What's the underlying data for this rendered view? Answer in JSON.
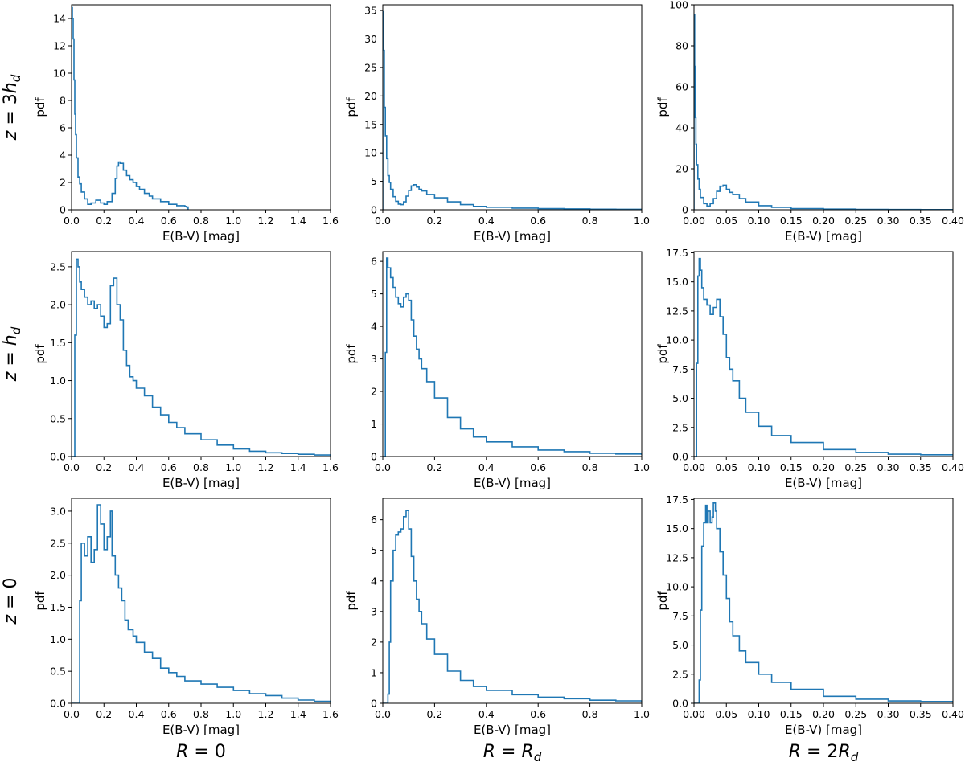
{
  "row_labels": [
    {
      "main": "z",
      "eq": " = 3",
      "var": "h",
      "sub": "d"
    },
    {
      "main": "z",
      "eq": " = ",
      "var": "h",
      "sub": "d"
    },
    {
      "main": "z",
      "eq": " = 0",
      "var": "",
      "sub": ""
    }
  ],
  "col_labels": [
    {
      "main": "R",
      "eq": " = 0",
      "var": "",
      "sub": ""
    },
    {
      "main": "R",
      "eq": " = ",
      "var": "R",
      "sub": "d"
    },
    {
      "main": "R",
      "eq": " = 2",
      "var": "R",
      "sub": "d"
    }
  ],
  "colors": {
    "series": "#1f77b4"
  },
  "chart_data": [
    {
      "type": "step",
      "row": 0,
      "col": 0,
      "xlabel": "E(B-V) [mag]",
      "ylabel": "pdf",
      "xlim": [
        0,
        1.6
      ],
      "ylim": [
        0,
        15
      ],
      "xticks": [
        "0.0",
        "0.2",
        "0.4",
        "0.6",
        "0.8",
        "1.0",
        "1.2",
        "1.4",
        "1.6"
      ],
      "xtick_values": [
        0,
        0.2,
        0.4,
        0.6,
        0.8,
        1.0,
        1.2,
        1.4,
        1.6
      ],
      "yticks": [
        "0",
        "2",
        "4",
        "6",
        "8",
        "10",
        "12",
        "14"
      ],
      "ytick_values": [
        0,
        2,
        4,
        6,
        8,
        10,
        12,
        14
      ],
      "x": [
        0.0,
        0.005,
        0.01,
        0.015,
        0.02,
        0.025,
        0.03,
        0.04,
        0.05,
        0.06,
        0.08,
        0.1,
        0.12,
        0.15,
        0.18,
        0.2,
        0.22,
        0.25,
        0.27,
        0.28,
        0.29,
        0.3,
        0.32,
        0.34,
        0.36,
        0.38,
        0.4,
        0.42,
        0.45,
        0.48,
        0.5,
        0.55,
        0.6,
        0.65,
        0.7,
        0.71,
        0.72
      ],
      "y": [
        14.8,
        14.0,
        12.5,
        9.5,
        7.0,
        5.5,
        3.8,
        2.4,
        1.9,
        1.3,
        0.8,
        0.4,
        0.5,
        0.7,
        0.5,
        0.4,
        0.6,
        1.2,
        2.3,
        3.2,
        3.5,
        3.4,
        2.9,
        2.5,
        2.2,
        2.0,
        1.7,
        1.5,
        1.2,
        1.0,
        0.8,
        0.6,
        0.4,
        0.3,
        0.25,
        0.2,
        0.0
      ]
    },
    {
      "type": "step",
      "row": 0,
      "col": 1,
      "xlabel": "E(B-V) [mag]",
      "ylabel": "pdf",
      "xlim": [
        0,
        1.0
      ],
      "ylim": [
        0,
        36
      ],
      "xticks": [
        "0.0",
        "0.2",
        "0.4",
        "0.6",
        "0.8",
        "1.0"
      ],
      "xtick_values": [
        0,
        0.2,
        0.4,
        0.6,
        0.8,
        1.0
      ],
      "yticks": [
        "0",
        "5",
        "10",
        "15",
        "20",
        "25",
        "30",
        "35"
      ],
      "ytick_values": [
        0,
        5,
        10,
        15,
        20,
        25,
        30,
        35
      ],
      "x": [
        0.0,
        0.003,
        0.006,
        0.01,
        0.015,
        0.02,
        0.025,
        0.03,
        0.04,
        0.05,
        0.06,
        0.07,
        0.08,
        0.09,
        0.1,
        0.11,
        0.12,
        0.13,
        0.14,
        0.15,
        0.17,
        0.2,
        0.25,
        0.3,
        0.35,
        0.4,
        0.5,
        0.6,
        0.7,
        0.8,
        0.9,
        1.0
      ],
      "y": [
        34.8,
        28.0,
        18.0,
        13.0,
        9.0,
        6.0,
        4.8,
        3.6,
        2.3,
        1.5,
        1.0,
        0.9,
        1.4,
        2.4,
        3.4,
        4.2,
        4.4,
        4.0,
        3.6,
        3.3,
        2.7,
        2.1,
        1.4,
        0.9,
        0.6,
        0.45,
        0.3,
        0.2,
        0.15,
        0.1,
        0.08,
        0.05
      ]
    },
    {
      "type": "step",
      "row": 0,
      "col": 2,
      "xlabel": "E(B-V) [mag]",
      "ylabel": "pdf",
      "xlim": [
        0,
        0.4
      ],
      "ylim": [
        0,
        100
      ],
      "xticks": [
        "0.00",
        "0.05",
        "0.10",
        "0.15",
        "0.20",
        "0.25",
        "0.30",
        "0.35",
        "0.40"
      ],
      "xtick_values": [
        0,
        0.05,
        0.1,
        0.15,
        0.2,
        0.25,
        0.3,
        0.35,
        0.4
      ],
      "yticks": [
        "0",
        "20",
        "40",
        "60",
        "80",
        "100"
      ],
      "ytick_values": [
        0,
        20,
        40,
        60,
        80,
        100
      ],
      "x": [
        0.0,
        0.001,
        0.002,
        0.003,
        0.004,
        0.006,
        0.008,
        0.01,
        0.015,
        0.02,
        0.025,
        0.03,
        0.035,
        0.04,
        0.045,
        0.05,
        0.055,
        0.06,
        0.07,
        0.08,
        0.1,
        0.12,
        0.15,
        0.2,
        0.25,
        0.3,
        0.35,
        0.4
      ],
      "y": [
        95.0,
        70.0,
        45.0,
        32.0,
        22.0,
        15.0,
        10.0,
        6.0,
        3.0,
        1.8,
        3.0,
        5.5,
        9.0,
        11.5,
        12.0,
        10.0,
        8.5,
        7.5,
        5.5,
        3.8,
        2.0,
        1.2,
        0.6,
        0.3,
        0.2,
        0.1,
        0.08,
        0.05
      ]
    },
    {
      "type": "step",
      "row": 1,
      "col": 0,
      "xlabel": "E(B-V) [mag]",
      "ylabel": "pdf",
      "xlim": [
        0,
        1.6
      ],
      "ylim": [
        0,
        2.7
      ],
      "xticks": [
        "0.0",
        "0.2",
        "0.4",
        "0.6",
        "0.8",
        "1.0",
        "1.2",
        "1.4",
        "1.6"
      ],
      "xtick_values": [
        0,
        0.2,
        0.4,
        0.6,
        0.8,
        1.0,
        1.2,
        1.4,
        1.6
      ],
      "yticks": [
        "0.0",
        "0.5",
        "1.0",
        "1.5",
        "2.0",
        "2.5"
      ],
      "ytick_values": [
        0,
        0.5,
        1.0,
        1.5,
        2.0,
        2.5
      ],
      "x": [
        0.0,
        0.02,
        0.03,
        0.04,
        0.05,
        0.06,
        0.08,
        0.1,
        0.12,
        0.14,
        0.16,
        0.18,
        0.2,
        0.22,
        0.24,
        0.26,
        0.28,
        0.3,
        0.32,
        0.34,
        0.36,
        0.38,
        0.4,
        0.45,
        0.5,
        0.55,
        0.6,
        0.65,
        0.7,
        0.8,
        0.9,
        1.0,
        1.1,
        1.2,
        1.3,
        1.4,
        1.5,
        1.6
      ],
      "y": [
        0.0,
        1.6,
        2.6,
        2.5,
        2.3,
        2.2,
        2.1,
        2.0,
        2.05,
        1.95,
        2.0,
        1.85,
        1.7,
        1.75,
        2.25,
        2.35,
        2.0,
        1.8,
        1.4,
        1.2,
        1.05,
        1.0,
        0.9,
        0.8,
        0.65,
        0.55,
        0.45,
        0.38,
        0.3,
        0.22,
        0.15,
        0.1,
        0.07,
        0.05,
        0.04,
        0.03,
        0.02,
        0.02
      ]
    },
    {
      "type": "step",
      "row": 1,
      "col": 1,
      "xlabel": "E(B-V) [mag]",
      "ylabel": "pdf",
      "xlim": [
        0,
        1.0
      ],
      "ylim": [
        0,
        6.3
      ],
      "xticks": [
        "0.0",
        "0.2",
        "0.4",
        "0.6",
        "0.8",
        "1.0"
      ],
      "xtick_values": [
        0,
        0.2,
        0.4,
        0.6,
        0.8,
        1.0
      ],
      "yticks": [
        "0",
        "1",
        "2",
        "3",
        "4",
        "5",
        "6"
      ],
      "ytick_values": [
        0,
        1,
        2,
        3,
        4,
        5,
        6
      ],
      "x": [
        0.0,
        0.01,
        0.015,
        0.02,
        0.03,
        0.04,
        0.05,
        0.06,
        0.07,
        0.08,
        0.09,
        0.1,
        0.11,
        0.12,
        0.13,
        0.14,
        0.15,
        0.17,
        0.2,
        0.25,
        0.3,
        0.35,
        0.4,
        0.5,
        0.6,
        0.7,
        0.8,
        0.9,
        1.0
      ],
      "y": [
        0.0,
        3.2,
        6.1,
        5.8,
        5.5,
        5.2,
        4.9,
        4.7,
        4.6,
        4.9,
        5.0,
        4.8,
        4.2,
        3.7,
        3.3,
        3.0,
        2.7,
        2.3,
        1.8,
        1.2,
        0.85,
        0.6,
        0.45,
        0.3,
        0.2,
        0.15,
        0.1,
        0.08,
        0.05
      ]
    },
    {
      "type": "step",
      "row": 1,
      "col": 2,
      "xlabel": "E(B-V) [mag]",
      "ylabel": "pdf",
      "xlim": [
        0,
        0.4
      ],
      "ylim": [
        0,
        17.6
      ],
      "xticks": [
        "0.00",
        "0.05",
        "0.10",
        "0.15",
        "0.20",
        "0.25",
        "0.30",
        "0.35",
        "0.40"
      ],
      "xtick_values": [
        0,
        0.05,
        0.1,
        0.15,
        0.2,
        0.25,
        0.3,
        0.35,
        0.4
      ],
      "yticks": [
        "0.0",
        "2.5",
        "5.0",
        "7.5",
        "10.0",
        "12.5",
        "15.0",
        "17.5"
      ],
      "ytick_values": [
        0,
        2.5,
        5.0,
        7.5,
        10.0,
        12.5,
        15.0,
        17.5
      ],
      "x": [
        0.0,
        0.004,
        0.006,
        0.008,
        0.01,
        0.012,
        0.015,
        0.02,
        0.025,
        0.03,
        0.035,
        0.04,
        0.045,
        0.05,
        0.055,
        0.06,
        0.07,
        0.08,
        0.1,
        0.12,
        0.15,
        0.2,
        0.25,
        0.3,
        0.35,
        0.4
      ],
      "y": [
        0.0,
        8.0,
        15.5,
        17.0,
        16.0,
        14.5,
        13.5,
        13.0,
        12.2,
        12.8,
        13.5,
        12.0,
        10.5,
        8.5,
        7.5,
        6.5,
        5.0,
        3.8,
        2.6,
        1.8,
        1.2,
        0.6,
        0.35,
        0.2,
        0.15,
        0.1
      ]
    },
    {
      "type": "step",
      "row": 2,
      "col": 0,
      "xlabel": "E(B-V) [mag]",
      "ylabel": "pdf",
      "xlim": [
        0,
        1.6
      ],
      "ylim": [
        0,
        3.2
      ],
      "xticks": [
        "0.0",
        "0.2",
        "0.4",
        "0.6",
        "0.8",
        "1.0",
        "1.2",
        "1.4",
        "1.6"
      ],
      "xtick_values": [
        0,
        0.2,
        0.4,
        0.6,
        0.8,
        1.0,
        1.2,
        1.4,
        1.6
      ],
      "yticks": [
        "0.0",
        "0.5",
        "1.0",
        "1.5",
        "2.0",
        "2.5",
        "3.0"
      ],
      "ytick_values": [
        0,
        0.5,
        1.0,
        1.5,
        2.0,
        2.5,
        3.0
      ],
      "x": [
        0.0,
        0.05,
        0.06,
        0.08,
        0.1,
        0.12,
        0.14,
        0.16,
        0.18,
        0.2,
        0.22,
        0.24,
        0.25,
        0.27,
        0.29,
        0.31,
        0.33,
        0.35,
        0.38,
        0.4,
        0.45,
        0.5,
        0.55,
        0.6,
        0.65,
        0.7,
        0.8,
        0.9,
        1.0,
        1.1,
        1.2,
        1.3,
        1.4,
        1.5,
        1.6
      ],
      "y": [
        0.0,
        1.6,
        2.5,
        2.3,
        2.6,
        2.2,
        2.4,
        3.1,
        2.8,
        2.4,
        2.6,
        3.0,
        2.3,
        2.0,
        1.8,
        1.6,
        1.3,
        1.15,
        1.05,
        0.95,
        0.8,
        0.7,
        0.55,
        0.48,
        0.42,
        0.35,
        0.3,
        0.25,
        0.2,
        0.15,
        0.12,
        0.08,
        0.05,
        0.03,
        0.02
      ]
    },
    {
      "type": "step",
      "row": 2,
      "col": 1,
      "xlabel": "E(B-V) [mag]",
      "ylabel": "pdf",
      "xlim": [
        0,
        1.0
      ],
      "ylim": [
        0,
        6.7
      ],
      "xticks": [
        "0.0",
        "0.2",
        "0.4",
        "0.6",
        "0.8",
        "1.0"
      ],
      "xtick_values": [
        0,
        0.2,
        0.4,
        0.6,
        0.8,
        1.0
      ],
      "yticks": [
        "0",
        "1",
        "2",
        "3",
        "4",
        "5",
        "6"
      ],
      "ytick_values": [
        0,
        1,
        2,
        3,
        4,
        5,
        6
      ],
      "x": [
        0.0,
        0.02,
        0.025,
        0.03,
        0.04,
        0.05,
        0.06,
        0.07,
        0.08,
        0.09,
        0.1,
        0.11,
        0.12,
        0.13,
        0.14,
        0.15,
        0.17,
        0.2,
        0.25,
        0.3,
        0.35,
        0.4,
        0.5,
        0.6,
        0.7,
        0.8,
        0.9,
        1.0
      ],
      "y": [
        0.0,
        0.3,
        2.0,
        4.0,
        5.0,
        5.5,
        5.6,
        5.7,
        6.1,
        6.3,
        5.7,
        4.8,
        4.0,
        3.4,
        3.0,
        2.6,
        2.1,
        1.6,
        1.05,
        0.75,
        0.55,
        0.42,
        0.28,
        0.2,
        0.15,
        0.1,
        0.08,
        0.05
      ]
    },
    {
      "type": "step",
      "row": 2,
      "col": 2,
      "xlabel": "E(B-V) [mag]",
      "ylabel": "pdf",
      "xlim": [
        0,
        0.4
      ],
      "ylim": [
        0,
        17.6
      ],
      "xticks": [
        "0.00",
        "0.05",
        "0.10",
        "0.15",
        "0.20",
        "0.25",
        "0.30",
        "0.35",
        "0.40"
      ],
      "xtick_values": [
        0,
        0.05,
        0.1,
        0.15,
        0.2,
        0.25,
        0.3,
        0.35,
        0.4
      ],
      "yticks": [
        "0.0",
        "2.5",
        "5.0",
        "7.5",
        "10.0",
        "12.5",
        "15.0",
        "17.5"
      ],
      "ytick_values": [
        0,
        2.5,
        5.0,
        7.5,
        10.0,
        12.5,
        15.0,
        17.5
      ],
      "x": [
        0.0,
        0.008,
        0.01,
        0.012,
        0.015,
        0.018,
        0.02,
        0.022,
        0.025,
        0.028,
        0.03,
        0.033,
        0.035,
        0.04,
        0.045,
        0.05,
        0.055,
        0.06,
        0.07,
        0.08,
        0.1,
        0.12,
        0.15,
        0.2,
        0.25,
        0.3,
        0.35,
        0.4
      ],
      "y": [
        0.0,
        2.0,
        8.0,
        13.5,
        15.5,
        17.0,
        15.5,
        16.5,
        15.5,
        16.0,
        17.2,
        16.5,
        15.0,
        13.0,
        11.0,
        9.0,
        7.0,
        5.8,
        4.5,
        3.5,
        2.5,
        1.8,
        1.2,
        0.6,
        0.35,
        0.2,
        0.15,
        0.1
      ]
    }
  ]
}
